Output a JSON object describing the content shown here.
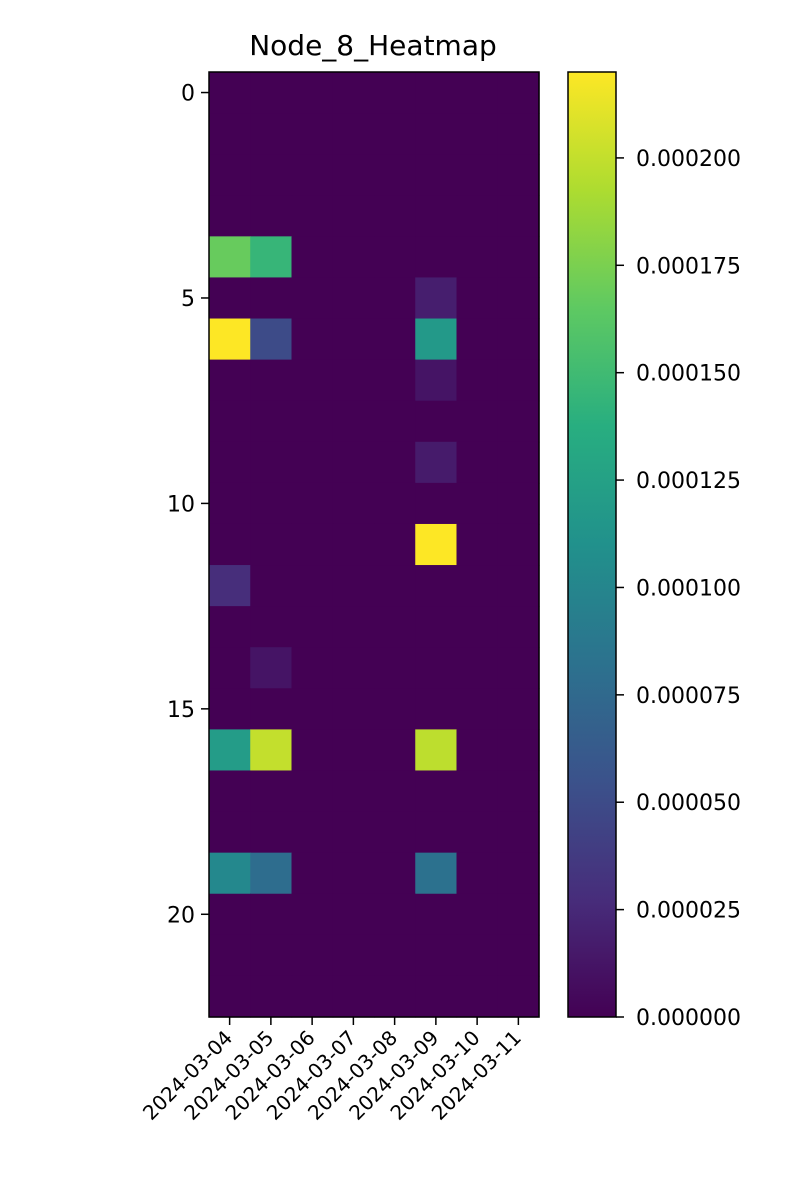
{
  "chart_data": {
    "type": "heatmap",
    "title": "Node_8_Heatmap",
    "xlabel": "",
    "ylabel": "",
    "x_categories": [
      "2024-03-04",
      "2024-03-05",
      "2024-03-06",
      "2024-03-07",
      "2024-03-08",
      "2024-03-09",
      "2024-03-10",
      "2024-03-11"
    ],
    "y_tick_labels": [
      "0",
      "5",
      "10",
      "15",
      "20"
    ],
    "y_tick_values": [
      0,
      5,
      10,
      15,
      20
    ],
    "rows": 23,
    "colormap": "viridis",
    "vmin": 0,
    "vmax": 0.00022,
    "colorbar_ticks": [
      0,
      2.5e-05,
      5e-05,
      7.5e-05,
      0.0001,
      0.000125,
      0.00015,
      0.000175,
      0.0002
    ],
    "colorbar_tick_labels": [
      "0.000000",
      "0.000025",
      "0.000050",
      "0.000075",
      "0.000100",
      "0.000125",
      "0.000150",
      "0.000175",
      "0.000200"
    ],
    "values": [
      [
        0,
        0,
        0,
        0,
        0,
        0,
        0,
        0
      ],
      [
        0,
        0,
        0,
        0,
        0,
        0,
        0,
        0
      ],
      [
        0,
        0,
        0,
        0,
        0,
        0,
        0,
        0
      ],
      [
        0,
        0,
        0,
        0,
        0,
        0,
        0,
        0
      ],
      [
        0.000168,
        0.000145,
        0,
        0,
        0,
        0,
        0,
        0
      ],
      [
        0,
        0,
        0,
        0,
        0,
        1.8e-05,
        0,
        0
      ],
      [
        0.00022,
        5e-05,
        0,
        0,
        0,
        0.000118,
        0,
        0
      ],
      [
        0,
        0,
        0,
        0,
        0,
        1.2e-05,
        0,
        0
      ],
      [
        0,
        0,
        0,
        0,
        0,
        0,
        0,
        0
      ],
      [
        0,
        0,
        0,
        0,
        0,
        1.6e-05,
        0,
        0
      ],
      [
        0,
        0,
        0,
        0,
        0,
        0,
        0,
        0
      ],
      [
        0,
        0,
        0,
        0,
        0,
        0.00022,
        0,
        0
      ],
      [
        2.8e-05,
        0,
        0,
        0,
        0,
        0,
        0,
        0
      ],
      [
        0,
        0,
        0,
        0,
        0,
        0,
        0,
        0
      ],
      [
        0,
        1.2e-05,
        0,
        0,
        0,
        0,
        0,
        0
      ],
      [
        0,
        0,
        0,
        0,
        0,
        0,
        0,
        0
      ],
      [
        0.00012,
        0.0002,
        0,
        0,
        0,
        0.000198,
        0,
        0
      ],
      [
        0,
        0,
        0,
        0,
        0,
        0,
        0,
        0
      ],
      [
        0,
        0,
        0,
        0,
        0,
        0,
        0,
        0
      ],
      [
        0.000102,
        7.8e-05,
        0,
        0,
        0,
        8.2e-05,
        0,
        0
      ],
      [
        0,
        0,
        0,
        0,
        0,
        0,
        0,
        0
      ],
      [
        0,
        0,
        0,
        0,
        0,
        0,
        0,
        0
      ],
      [
        0,
        0,
        0,
        0,
        0,
        0,
        0,
        0
      ]
    ]
  }
}
